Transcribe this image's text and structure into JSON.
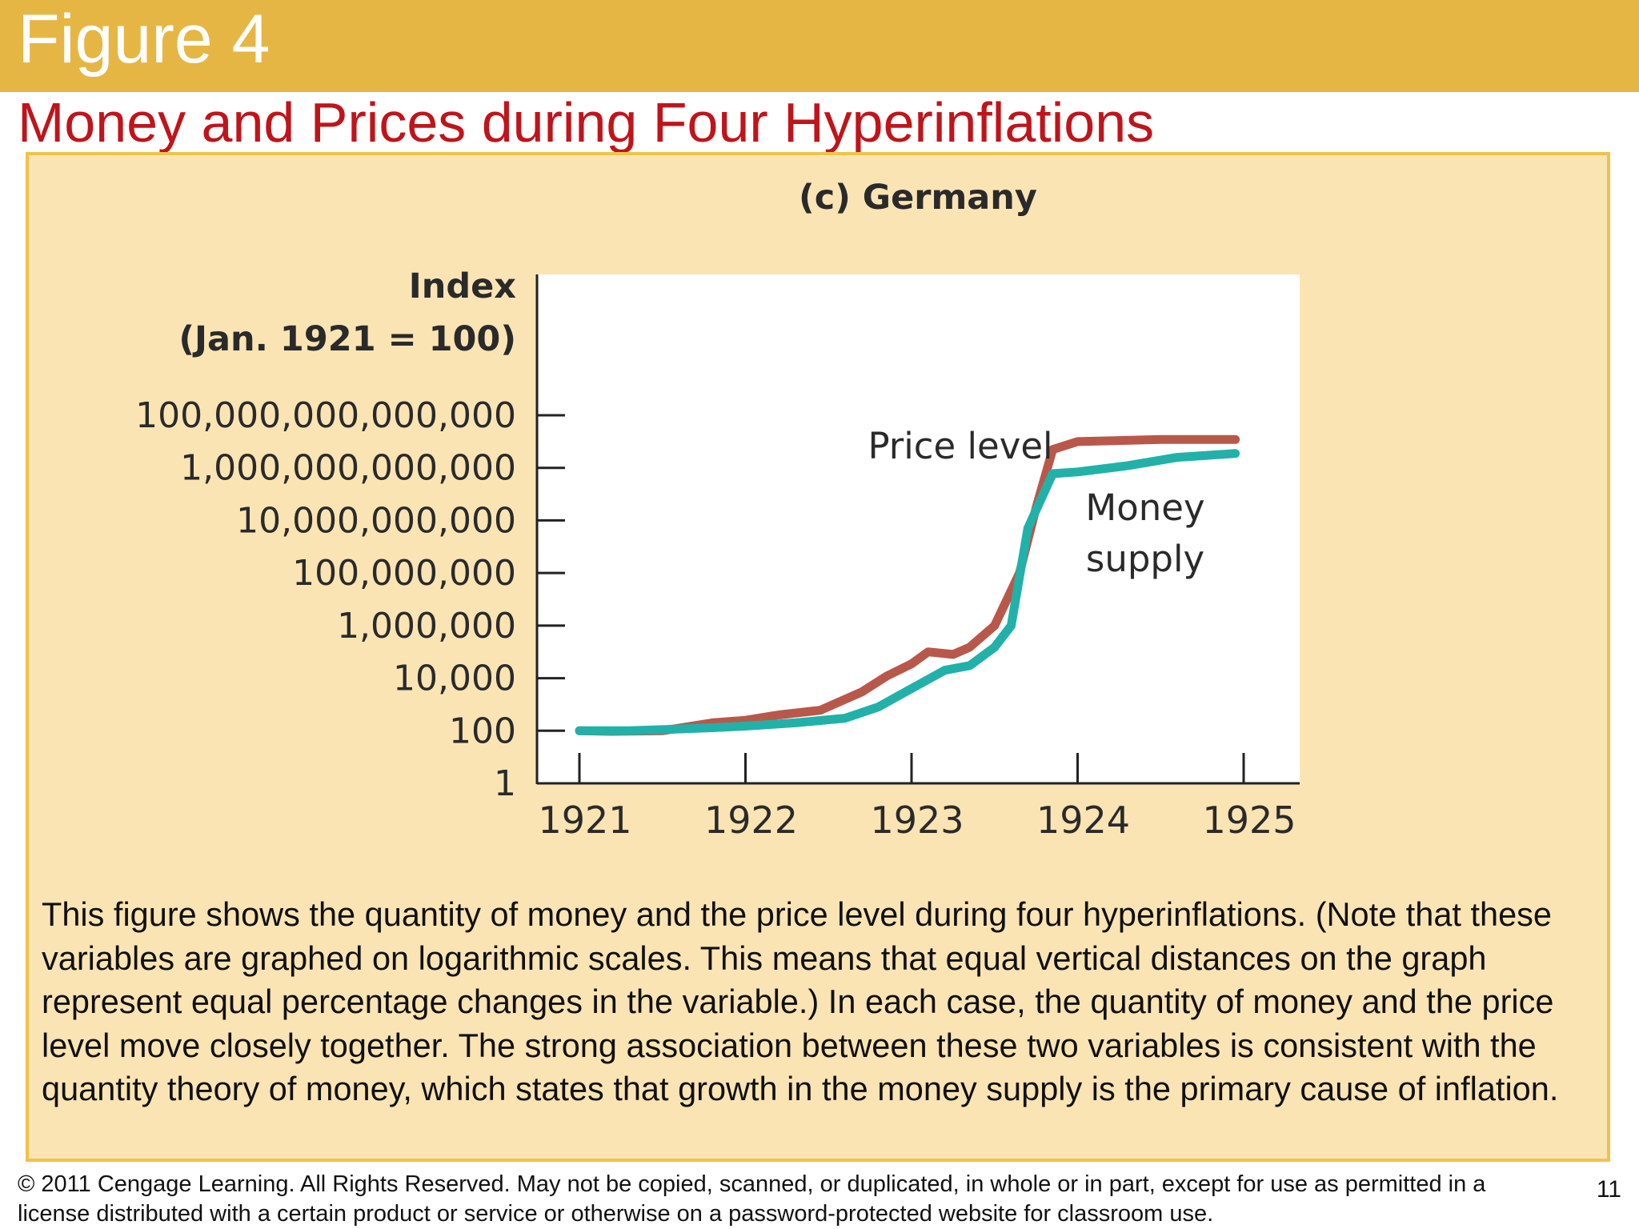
{
  "header": {
    "figure_label": "Figure 4",
    "title": "Money and Prices during Four Hyperinflations",
    "bar_color": "#e6b645",
    "title_color": "#c0141b"
  },
  "panel": {
    "background": "#fbe4b4",
    "border_color": "#f0c24a"
  },
  "chart_data": {
    "type": "line",
    "title": "(c) Germany",
    "ylabel_line1": "Index",
    "ylabel_line2": "(Jan. 1921 = 100)",
    "y_scale": "log",
    "ylim": [
      1,
      100000000000000
    ],
    "y_ticks": [
      {
        "value": 1,
        "label": "1"
      },
      {
        "value": 100,
        "label": "100"
      },
      {
        "value": 10000,
        "label": "10,000"
      },
      {
        "value": 1000000,
        "label": "1,000,000"
      },
      {
        "value": 100000000,
        "label": "100,000,000"
      },
      {
        "value": 10000000000,
        "label": "10,000,000,000"
      },
      {
        "value": 1000000000000,
        "label": "1,000,000,000,000"
      },
      {
        "value": 100000000000000,
        "label": "100,000,000,000,000"
      }
    ],
    "x_ticks": [
      "1921",
      "1922",
      "1923",
      "1924",
      "1925"
    ],
    "xlim": [
      1920.72,
      1925.3
    ],
    "grid": false,
    "series": [
      {
        "name": "Price level",
        "color": "#b8584b",
        "points": [
          [
            1921.0,
            100
          ],
          [
            1921.2,
            95
          ],
          [
            1921.5,
            100
          ],
          [
            1921.8,
            200
          ],
          [
            1922.0,
            250
          ],
          [
            1922.2,
            400
          ],
          [
            1922.45,
            600
          ],
          [
            1922.7,
            3000
          ],
          [
            1922.85,
            12000
          ],
          [
            1923.0,
            35000
          ],
          [
            1923.1,
            100000
          ],
          [
            1923.25,
            80000
          ],
          [
            1923.35,
            150000
          ],
          [
            1923.5,
            1000000
          ],
          [
            1923.65,
            100000000
          ],
          [
            1923.75,
            30000000000
          ],
          [
            1923.85,
            5000000000000
          ],
          [
            1924.0,
            10000000000000
          ],
          [
            1924.5,
            12000000000000
          ],
          [
            1924.95,
            12000000000000
          ]
        ]
      },
      {
        "name": "Money supply",
        "color": "#21b1a9",
        "points": [
          [
            1921.0,
            100
          ],
          [
            1921.3,
            100
          ],
          [
            1921.5,
            110
          ],
          [
            1921.8,
            130
          ],
          [
            1922.0,
            150
          ],
          [
            1922.3,
            200
          ],
          [
            1922.6,
            300
          ],
          [
            1922.8,
            800
          ],
          [
            1923.0,
            4000
          ],
          [
            1923.2,
            20000
          ],
          [
            1923.35,
            30000
          ],
          [
            1923.5,
            150000
          ],
          [
            1923.6,
            1000000
          ],
          [
            1923.7,
            5000000000
          ],
          [
            1923.85,
            600000000000
          ],
          [
            1924.0,
            700000000000
          ],
          [
            1924.3,
            1200000000000
          ],
          [
            1924.6,
            2500000000000
          ],
          [
            1924.95,
            3500000000000
          ]
        ]
      }
    ],
    "annotations": {
      "price_level": "Price level",
      "money_line1": "Money",
      "money_line2": "supply"
    }
  },
  "caption": "This figure shows the quantity of money and the price level during four hyperinflations. (Note that these variables are graphed on logarithmic scales. This means that equal vertical distances on the graph represent equal percentage changes in the variable.) In each case, the quantity of money and the price level move closely together. The strong association between these two variables is consistent with the quantity theory of money, which states that growth in the money supply is the primary cause of inflation.",
  "footer": {
    "copyright": "© 2011 Cengage Learning. All Rights Reserved. May not be copied, scanned, or duplicated, in whole or in part, except for use as permitted in a license distributed with a certain product or service or otherwise on a password-protected website for classroom use.",
    "page_number": "11"
  }
}
